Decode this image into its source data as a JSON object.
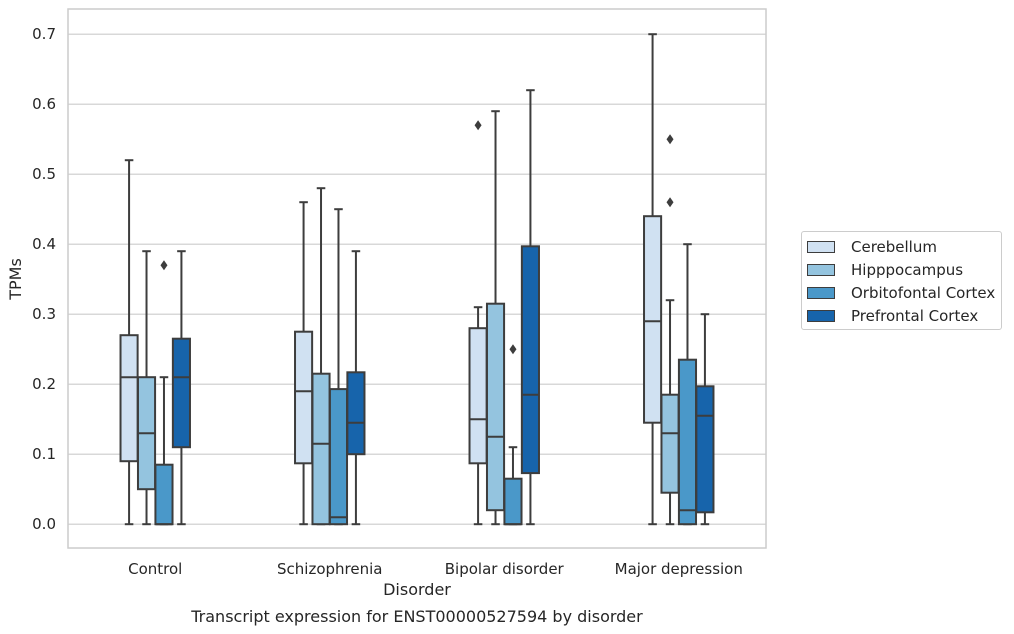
{
  "chart_data": {
    "type": "box",
    "title": "Transcript expression for ENST00000527594 by disorder",
    "xlabel": "Disorder",
    "ylabel": "TPMs",
    "ylim": [
      -0.034,
      0.736
    ],
    "yticks": [
      0.0,
      0.1,
      0.2,
      0.3,
      0.4,
      0.5,
      0.6,
      0.7
    ],
    "ytick_labels": [
      "0.0",
      "0.1",
      "0.2",
      "0.3",
      "0.4",
      "0.5",
      "0.6",
      "0.7"
    ],
    "grid": "horizontal",
    "legend_position": "outside-right",
    "categories": [
      "Control",
      "Schizophrenia",
      "Bipolar disorder",
      "Major depression"
    ],
    "series": [
      {
        "name": "Cerebellum",
        "color": "#d0e1f2",
        "boxes": [
          {
            "whisker_low": 0.0,
            "q1": 0.09,
            "median": 0.21,
            "q3": 0.27,
            "whisker_high": 0.52,
            "outliers": []
          },
          {
            "whisker_low": 0.0,
            "q1": 0.087,
            "median": 0.19,
            "q3": 0.275,
            "whisker_high": 0.46,
            "outliers": []
          },
          {
            "whisker_low": 0.0,
            "q1": 0.087,
            "median": 0.15,
            "q3": 0.28,
            "whisker_high": 0.31,
            "outliers": [
              0.57
            ]
          },
          {
            "whisker_low": 0.0,
            "q1": 0.145,
            "median": 0.29,
            "q3": 0.44,
            "whisker_high": 0.7,
            "outliers": []
          }
        ]
      },
      {
        "name": "Hipppocampus",
        "color": "#94c4df",
        "boxes": [
          {
            "whisker_low": 0.0,
            "q1": 0.05,
            "median": 0.13,
            "q3": 0.21,
            "whisker_high": 0.39,
            "outliers": []
          },
          {
            "whisker_low": 0.0,
            "q1": 0.0,
            "median": 0.115,
            "q3": 0.215,
            "whisker_high": 0.48,
            "outliers": []
          },
          {
            "whisker_low": 0.0,
            "q1": 0.02,
            "median": 0.125,
            "q3": 0.315,
            "whisker_high": 0.59,
            "outliers": []
          },
          {
            "whisker_low": 0.0,
            "q1": 0.045,
            "median": 0.13,
            "q3": 0.185,
            "whisker_high": 0.32,
            "outliers": [
              0.46,
              0.55
            ]
          }
        ]
      },
      {
        "name": "Orbitofontal Cortex",
        "color": "#4a98c9",
        "boxes": [
          {
            "whisker_low": 0.0,
            "q1": 0.0,
            "median": 0.0,
            "q3": 0.085,
            "whisker_high": 0.21,
            "outliers": [
              0.37
            ]
          },
          {
            "whisker_low": 0.0,
            "q1": 0.0,
            "median": 0.01,
            "q3": 0.193,
            "whisker_high": 0.45,
            "outliers": []
          },
          {
            "whisker_low": 0.0,
            "q1": 0.0,
            "median": 0.0,
            "q3": 0.065,
            "whisker_high": 0.11,
            "outliers": [
              0.25
            ]
          },
          {
            "whisker_low": 0.0,
            "q1": 0.0,
            "median": 0.02,
            "q3": 0.235,
            "whisker_high": 0.4,
            "outliers": []
          }
        ]
      },
      {
        "name": "Prefrontal Cortex",
        "color": "#1764ab",
        "boxes": [
          {
            "whisker_low": 0.0,
            "q1": 0.11,
            "median": 0.21,
            "q3": 0.265,
            "whisker_high": 0.39,
            "outliers": []
          },
          {
            "whisker_low": 0.0,
            "q1": 0.1,
            "median": 0.145,
            "q3": 0.217,
            "whisker_high": 0.39,
            "outliers": []
          },
          {
            "whisker_low": 0.0,
            "q1": 0.073,
            "median": 0.185,
            "q3": 0.397,
            "whisker_high": 0.62,
            "outliers": []
          },
          {
            "whisker_low": 0.0,
            "q1": 0.017,
            "median": 0.155,
            "q3": 0.197,
            "whisker_high": 0.3,
            "outliers": []
          }
        ]
      }
    ]
  },
  "colors": {
    "line": "#3d3d3d",
    "grid": "#cccccc",
    "frame": "#cccccc",
    "text": "#262626"
  }
}
